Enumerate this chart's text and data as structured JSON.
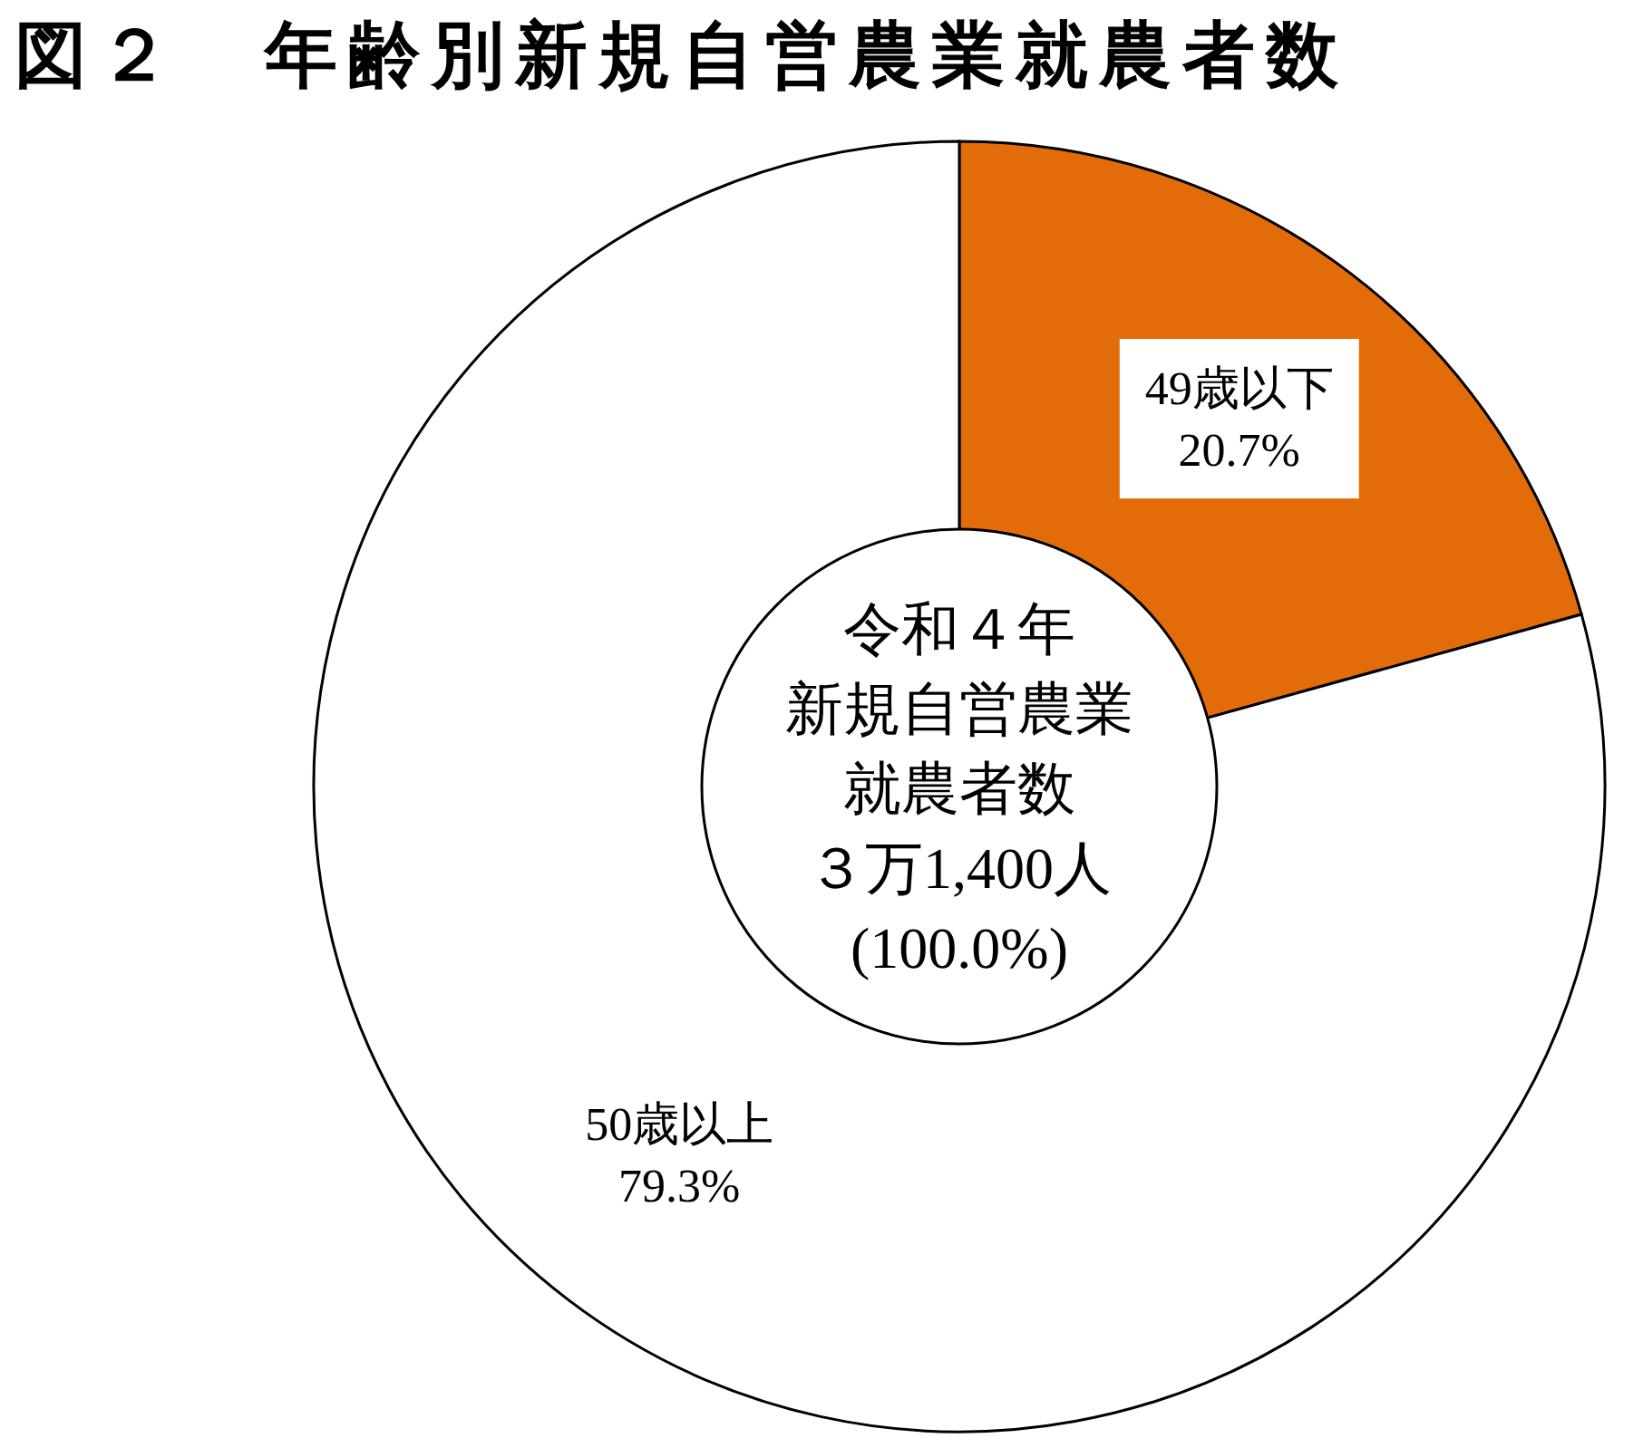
{
  "chart_data": {
    "type": "donut",
    "title": "図２　年齢別新規自営農業就農者数",
    "categories": [
      "49歳以下",
      "50歳以上"
    ],
    "values": [
      20.7,
      79.3
    ],
    "colors": [
      "#e36c0a",
      "#ffffff"
    ],
    "value_labels": [
      "20.7%",
      "79.3%"
    ],
    "annotations": [
      "令和４年",
      "新規自営農業",
      "就農者数",
      "３万1,400人",
      "(100.0%)"
    ]
  }
}
